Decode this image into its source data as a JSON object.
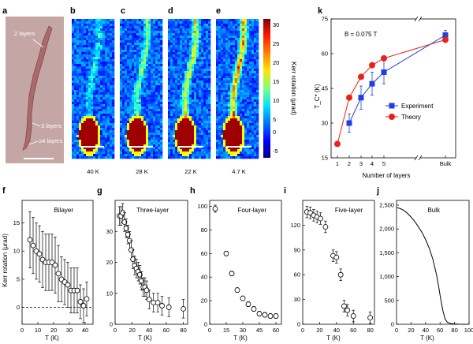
{
  "panels": {
    "a": {
      "label": "a",
      "annotations": [
        "2 layers",
        "3 layers",
        "≥4 layers"
      ]
    },
    "b": {
      "label": "b",
      "temp": "40 K"
    },
    "c": {
      "label": "c",
      "temp": "28 K"
    },
    "d": {
      "label": "d",
      "temp": "22 K"
    },
    "e": {
      "label": "e",
      "temp": "4.7 K"
    },
    "colorbar": {
      "title": "Kerr rotation (μrad)",
      "ticks": [
        "30",
        "25",
        "20",
        "15",
        "10",
        "5",
        "0",
        "-5"
      ]
    },
    "k": {
      "label": "k",
      "field": "B = 0.075 T"
    },
    "f": {
      "label": "f",
      "title": "Bilayer"
    },
    "g": {
      "label": "g",
      "title": "Three-layer"
    },
    "h": {
      "label": "h",
      "title": "Four-layer"
    },
    "i": {
      "label": "i",
      "title": "Five-layer"
    },
    "j": {
      "label": "j",
      "title": "Bulk"
    }
  },
  "colors": {
    "experiment": "#1f3fe0",
    "theory": "#e8231c",
    "flake": "#a86a6a",
    "substrate": "#c4a7a5"
  },
  "chart_data": [
    {
      "id": "k",
      "type": "line",
      "xlabel": "Number of layers",
      "ylabel": "T_C* (K)",
      "tick_labels_x": [
        "1",
        "2",
        "3",
        "4",
        "5",
        "Bulk"
      ],
      "yticks": [
        15,
        30,
        45,
        60,
        75
      ],
      "ylim": [
        15,
        75
      ],
      "legend_position": "center-right",
      "series": [
        {
          "name": "Experiment",
          "x": [
            "2",
            "3",
            "4",
            "5",
            "Bulk"
          ],
          "values": [
            30,
            41,
            47,
            52,
            68
          ],
          "errors": [
            4,
            5,
            5,
            5,
            2
          ]
        },
        {
          "name": "Theory",
          "x": [
            "1",
            "2",
            "3",
            "4",
            "5",
            "Bulk"
          ],
          "values": [
            21,
            41,
            50,
            55,
            58,
            66
          ]
        }
      ]
    },
    {
      "id": "f",
      "type": "scatter",
      "xlabel": "T (K)",
      "ylabel": "Kerr rotation (μrad)",
      "xlim": [
        0,
        45
      ],
      "ylim": [
        -3,
        19
      ],
      "xticks": [
        0,
        10,
        20,
        30,
        40
      ],
      "yticks": [
        0,
        5,
        10,
        15
      ],
      "reference_line": 0,
      "x": [
        5,
        7,
        9,
        11,
        13,
        15,
        17,
        19,
        21,
        23,
        25,
        27,
        29,
        31,
        33,
        35,
        37,
        39,
        41
      ],
      "values": [
        12,
        11,
        10,
        9.5,
        8.5,
        8,
        8,
        8,
        7.5,
        6,
        5,
        4.5,
        4,
        3,
        3,
        3,
        1,
        0.3,
        1.5
      ],
      "errors": [
        5,
        5,
        5,
        5,
        5,
        5,
        5,
        5,
        5,
        5,
        4,
        4,
        4,
        4,
        4,
        4,
        3,
        3,
        3
      ]
    },
    {
      "id": "g",
      "type": "scatter",
      "xlabel": "T (K)",
      "xlim": [
        0,
        85
      ],
      "ylim": [
        0,
        40
      ],
      "xticks": [
        0,
        20,
        40,
        60,
        80
      ],
      "yticks": [
        0,
        10,
        20,
        30
      ],
      "x": [
        5,
        7,
        9,
        11,
        13,
        15,
        17,
        19,
        21,
        23,
        25,
        27,
        29,
        31,
        33,
        35,
        37,
        40,
        45,
        50,
        55,
        63,
        80
      ],
      "values": [
        35,
        35,
        36,
        33,
        31,
        29,
        27,
        24,
        21,
        19,
        18,
        17,
        16,
        14,
        12,
        12,
        11,
        8,
        7,
        7,
        6,
        5.5,
        5
      ],
      "errors": [
        3,
        3,
        3,
        3,
        3,
        3,
        3,
        3,
        3,
        3,
        3,
        3,
        3,
        3,
        3,
        3,
        3,
        3,
        3,
        3,
        3,
        3,
        3
      ]
    },
    {
      "id": "h",
      "type": "scatter",
      "xlabel": "T (K)",
      "xlim": [
        0,
        65
      ],
      "ylim": [
        0,
        105
      ],
      "xticks": [
        0,
        15,
        30,
        45,
        60
      ],
      "yticks": [
        0,
        20,
        40,
        60,
        80,
        100
      ],
      "x": [
        5,
        15,
        20,
        25,
        30,
        35,
        40,
        45,
        50,
        55,
        60
      ],
      "values": [
        98,
        60,
        43,
        29,
        22,
        17,
        13,
        9,
        8,
        7,
        7
      ],
      "errors": [
        3,
        2,
        2,
        2,
        2,
        2,
        2,
        2,
        2,
        2,
        2
      ]
    },
    {
      "id": "i",
      "type": "scatter",
      "xlabel": "T (K)",
      "xlim": [
        0,
        85
      ],
      "ylim": [
        0,
        150
      ],
      "xticks": [
        0,
        20,
        40,
        60,
        80
      ],
      "yticks": [
        0,
        30,
        60,
        90,
        120
      ],
      "x": [
        5,
        9,
        13,
        17,
        21,
        27,
        36,
        40,
        45,
        49,
        53,
        60,
        80
      ],
      "values": [
        136,
        135,
        132,
        130,
        128,
        118,
        83,
        81,
        60,
        22,
        17,
        10,
        8
      ],
      "errors": [
        7,
        7,
        7,
        7,
        7,
        7,
        7,
        7,
        7,
        7,
        7,
        7,
        7
      ]
    },
    {
      "id": "j",
      "type": "line",
      "xlabel": "T (K)",
      "xlim": [
        0,
        100
      ],
      "ylim": [
        0,
        2600
      ],
      "xticks": [
        0,
        20,
        40,
        60,
        80,
        100
      ],
      "yticks": [
        0,
        500,
        1000,
        1500,
        2000,
        2500
      ],
      "tick_labels_y": [
        "0",
        "500",
        "1,000",
        "1,500",
        "2,000",
        "2,500"
      ],
      "x": [
        0,
        5,
        10,
        15,
        20,
        25,
        30,
        35,
        40,
        45,
        50,
        55,
        58,
        61,
        64,
        67,
        70,
        75,
        80,
        85,
        90,
        100
      ],
      "values": [
        2450,
        2430,
        2390,
        2330,
        2250,
        2160,
        2050,
        1930,
        1780,
        1600,
        1370,
        1050,
        800,
        520,
        280,
        110,
        40,
        15,
        8,
        3,
        1,
        0
      ]
    }
  ]
}
